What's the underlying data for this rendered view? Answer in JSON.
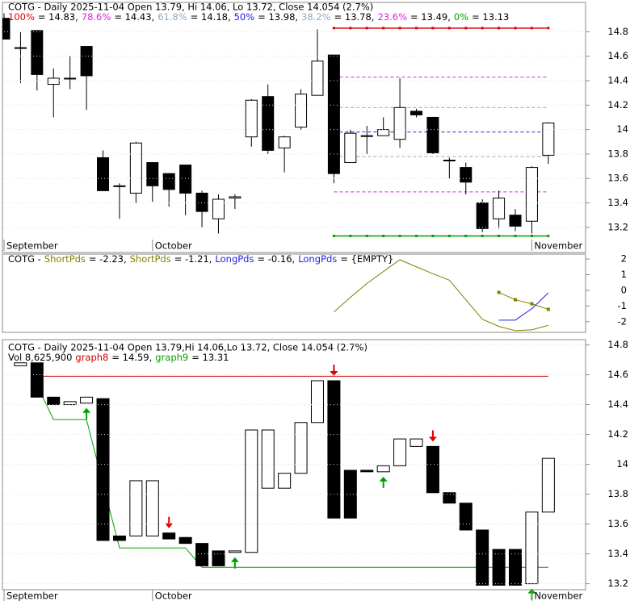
{
  "chart_data": [
    {
      "type": "candlestick",
      "title": "COTG - Daily 2025-11-04 Open 13.79, Hi 14.06, Lo 13.72, Close 14.054 (2.7%)",
      "categories": [
        "September",
        null,
        null,
        null,
        null,
        null,
        null,
        null,
        null,
        "October",
        null,
        null,
        null,
        null,
        null,
        null,
        null,
        null,
        null,
        null,
        null,
        null,
        null,
        null,
        null,
        null,
        null,
        null,
        null,
        null,
        null,
        null,
        "November",
        null
      ],
      "open": [
        14.91,
        14.67,
        14.81,
        14.37,
        14.42,
        14.68,
        13.77,
        13.54,
        13.48,
        13.73,
        13.64,
        13.71,
        13.48,
        13.27,
        13.44,
        13.94,
        14.27,
        13.85,
        14.02,
        14.28,
        14.61,
        13.73,
        13.95,
        13.95,
        13.92,
        14.15,
        14.1,
        13.75,
        13.69,
        13.4,
        13.27,
        13.3,
        13.25,
        13.79
      ],
      "high": [
        14.95,
        14.8,
        14.81,
        14.5,
        14.6,
        14.68,
        13.83,
        13.56,
        13.9,
        13.73,
        13.64,
        13.71,
        13.5,
        13.47,
        13.47,
        14.25,
        14.37,
        13.95,
        14.33,
        14.82,
        14.61,
        14.0,
        14.03,
        14.1,
        14.42,
        14.17,
        14.1,
        13.77,
        13.73,
        13.43,
        13.5,
        13.35,
        13.7,
        14.06
      ],
      "low": [
        14.74,
        14.38,
        14.32,
        14.1,
        14.33,
        14.16,
        13.5,
        13.27,
        13.4,
        13.41,
        13.37,
        13.3,
        13.2,
        13.15,
        13.35,
        13.86,
        13.8,
        13.65,
        14.0,
        14.28,
        13.56,
        13.73,
        13.8,
        13.95,
        13.85,
        14.1,
        13.8,
        13.6,
        13.47,
        13.16,
        13.19,
        13.17,
        13.15,
        13.72
      ],
      "close": [
        14.74,
        14.67,
        14.45,
        14.42,
        14.42,
        14.44,
        13.5,
        13.54,
        13.89,
        13.54,
        13.51,
        13.48,
        13.33,
        13.43,
        13.45,
        14.24,
        13.83,
        13.94,
        14.29,
        14.56,
        13.64,
        13.97,
        13.95,
        14.0,
        14.18,
        14.12,
        13.81,
        13.75,
        13.57,
        13.19,
        13.44,
        13.21,
        13.69,
        14.054
      ],
      "fib_levels": [
        {
          "name": "100%",
          "label": "= 14.83,",
          "value": 14.83,
          "color": "#e00000",
          "style": "solid"
        },
        {
          "name": "78.6%",
          "label": "= 14.43,",
          "value": 14.43,
          "color": "#e020e0",
          "style": "dashed"
        },
        {
          "name": "61.8%",
          "label": "= 14.18,",
          "value": 14.18,
          "color": "#8fa8c8",
          "style": "dashed"
        },
        {
          "name": "50%",
          "label": "= 13.98,",
          "value": 13.98,
          "color": "#2020e0",
          "style": "dashed"
        },
        {
          "name": "38.2%",
          "label": "= 13.78,",
          "value": 13.78,
          "color": "#8fa8c8",
          "style": "dashed"
        },
        {
          "name": "23.6%",
          "label": "= 13.49,",
          "value": 13.49,
          "color": "#e020e0",
          "style": "dashed"
        },
        {
          "name": "0%",
          "label": "= 13.13",
          "value": 13.13,
          "color": "#00a000",
          "style": "solid"
        }
      ],
      "ylim": [
        13.1,
        15.04
      ],
      "yticks": [
        13.2,
        13.4,
        13.6,
        13.8,
        14,
        14.2,
        14.4,
        14.6,
        14.8
      ],
      "grid": true
    },
    {
      "type": "line",
      "title": "COTG -",
      "series": [
        {
          "name": "ShortPds",
          "legend_label": "= -2.23,",
          "color": "#808000",
          "markers": false,
          "values": [
            null,
            null,
            null,
            null,
            null,
            null,
            null,
            null,
            null,
            null,
            null,
            null,
            null,
            null,
            null,
            null,
            null,
            null,
            null,
            null,
            -1.38,
            -0.45,
            0.44,
            1.2,
            1.95,
            1.5,
            1.06,
            0.65,
            -0.6,
            -1.84,
            -2.3,
            -2.57,
            -2.52,
            -2.23
          ]
        },
        {
          "name": "ShortPds",
          "legend_label": "= -1.21,",
          "color": "#808000",
          "markers": true,
          "values": [
            null,
            null,
            null,
            null,
            null,
            null,
            null,
            null,
            null,
            null,
            null,
            null,
            null,
            null,
            null,
            null,
            null,
            null,
            null,
            null,
            null,
            null,
            null,
            null,
            null,
            null,
            null,
            null,
            null,
            null,
            -0.13,
            -0.6,
            -0.86,
            -1.21
          ]
        },
        {
          "name": "LongPds",
          "legend_label": "= -0.16,",
          "color": "#2020e0",
          "markers": false,
          "values": [
            null,
            null,
            null,
            null,
            null,
            null,
            null,
            null,
            null,
            null,
            null,
            null,
            null,
            null,
            null,
            null,
            null,
            null,
            null,
            null,
            null,
            null,
            null,
            null,
            null,
            null,
            null,
            null,
            null,
            null,
            -1.9,
            -1.9,
            -1.17,
            -0.16
          ]
        },
        {
          "name": "LongPds",
          "legend_label": "= {EMPTY}",
          "color": "#2020e0",
          "markers": false,
          "values": [
            null,
            null,
            null,
            null,
            null,
            null,
            null,
            null,
            null,
            null,
            null,
            null,
            null,
            null,
            null,
            null,
            null,
            null,
            null,
            null,
            null,
            null,
            null,
            null,
            null,
            null,
            null,
            null,
            null,
            null,
            null,
            null,
            null,
            null
          ]
        }
      ],
      "ylim": [
        -2.68,
        2.31
      ],
      "yticks": [
        -2,
        -1,
        0,
        1,
        2
      ]
    },
    {
      "type": "box",
      "title": "COTG - Daily 2025-11-04 Open 13.79,Hi 14.06,Lo 13.72, Close 14.054 (2.7%)",
      "volume_label": "Vol 8,625,900",
      "categories": [
        "September",
        null,
        null,
        null,
        null,
        null,
        null,
        null,
        null,
        "October",
        null,
        null,
        null,
        null,
        null,
        null,
        null,
        null,
        null,
        null,
        null,
        null,
        null,
        null,
        null,
        null,
        null,
        null,
        null,
        null,
        null,
        null,
        "November",
        null
      ],
      "open": [
        null,
        14.66,
        14.68,
        14.45,
        14.4,
        14.41,
        14.44,
        13.52,
        13.52,
        13.52,
        13.54,
        13.51,
        13.47,
        13.42,
        13.41,
        13.41,
        13.84,
        13.84,
        13.94,
        14.28,
        14.56,
        13.96,
        13.96,
        13.95,
        13.99,
        14.12,
        14.12,
        13.81,
        13.74,
        13.56,
        13.43,
        13.43,
        13.2,
        13.68
      ],
      "close": [
        null,
        14.68,
        14.45,
        14.4,
        14.42,
        14.45,
        13.49,
        13.49,
        13.89,
        13.89,
        13.5,
        13.47,
        13.32,
        13.32,
        13.42,
        14.23,
        14.23,
        13.94,
        14.28,
        14.56,
        13.64,
        13.64,
        13.95,
        13.99,
        14.17,
        14.17,
        13.81,
        13.74,
        13.56,
        13.19,
        13.19,
        13.19,
        13.68,
        14.04
      ],
      "series": [
        {
          "name": "graph8",
          "legend_label": "= 14.59,",
          "color": "#d00000",
          "values": [
            null,
            null,
            14.59,
            14.59,
            14.59,
            14.59,
            14.59,
            14.59,
            14.59,
            14.59,
            14.59,
            14.59,
            14.59,
            14.59,
            14.59,
            14.59,
            14.59,
            14.59,
            14.59,
            14.59,
            14.59,
            14.59,
            14.59,
            14.59,
            14.59,
            14.59,
            14.59,
            14.59,
            14.59,
            14.59,
            14.59,
            14.59,
            14.59,
            14.59
          ]
        },
        {
          "name": "graph9",
          "legend_label": "= 13.31",
          "color": "#00a000",
          "values": [
            null,
            null,
            14.53,
            14.3,
            14.3,
            14.3,
            13.87,
            13.44,
            13.44,
            13.44,
            13.44,
            13.44,
            13.31,
            13.31,
            13.31,
            13.31,
            13.31,
            13.31,
            13.31,
            13.31,
            13.31,
            13.31,
            13.31,
            13.31,
            13.31,
            13.31,
            13.31,
            13.31,
            13.31,
            13.31,
            13.31,
            13.31,
            13.31,
            13.31
          ]
        }
      ],
      "sell_signals": [
        10,
        20,
        26
      ],
      "buy_signals": [
        5,
        14,
        23,
        32
      ],
      "ylim": [
        13.16,
        14.83
      ],
      "yticks": [
        13.2,
        13.4,
        13.6,
        13.8,
        14,
        14.2,
        14.4,
        14.6,
        14.8
      ],
      "grid": true
    }
  ]
}
